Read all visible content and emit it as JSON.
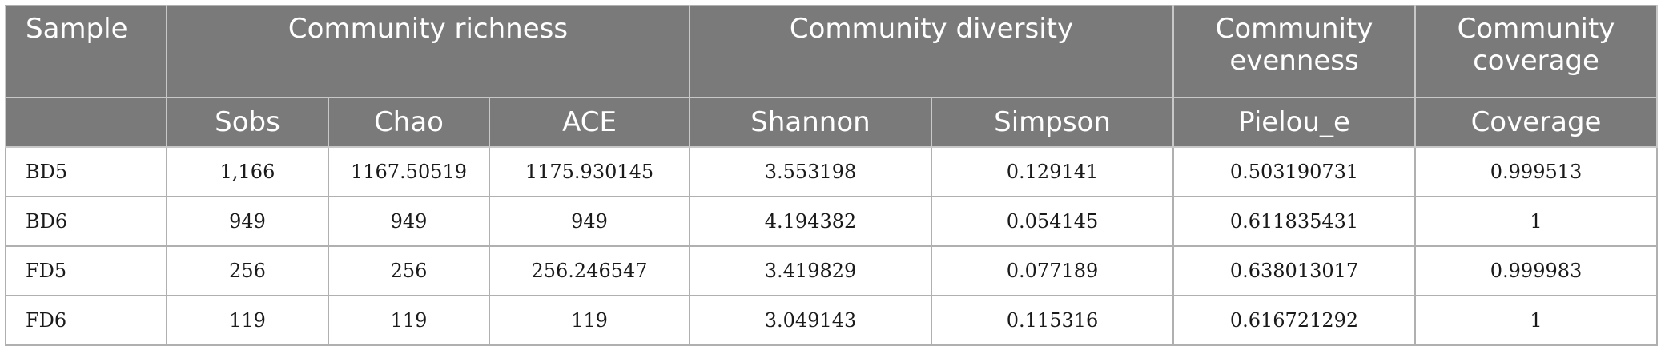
{
  "table": {
    "group_headers": {
      "sample": "Sample",
      "richness": "Community richness",
      "diversity": "Community diversity",
      "evenness": "Community evenness",
      "coverage": "Community coverage"
    },
    "sub_headers": {
      "sobs": "Sobs",
      "chao": "Chao",
      "ace": "ACE",
      "shannon": "Shannon",
      "simpson": "Simpson",
      "pielou": "Pielou_e",
      "coverage": "Coverage"
    },
    "rows": [
      {
        "sample": "BD5",
        "sobs": "1,166",
        "chao": "1167.50519",
        "ace": "1175.930145",
        "shannon": "3.553198",
        "simpson": "0.129141",
        "pielou": "0.503190731",
        "coverage": "0.999513"
      },
      {
        "sample": "BD6",
        "sobs": "949",
        "chao": "949",
        "ace": "949",
        "shannon": "4.194382",
        "simpson": "0.054145",
        "pielou": "0.611835431",
        "coverage": "1"
      },
      {
        "sample": "FD5",
        "sobs": "256",
        "chao": "256",
        "ace": "256.246547",
        "shannon": "3.419829",
        "simpson": "0.077189",
        "pielou": "0.638013017",
        "coverage": "0.999983"
      },
      {
        "sample": "FD6",
        "sobs": "119",
        "chao": "119",
        "ace": "119",
        "shannon": "3.049143",
        "simpson": "0.115316",
        "pielou": "0.616721292",
        "coverage": "1"
      }
    ]
  }
}
